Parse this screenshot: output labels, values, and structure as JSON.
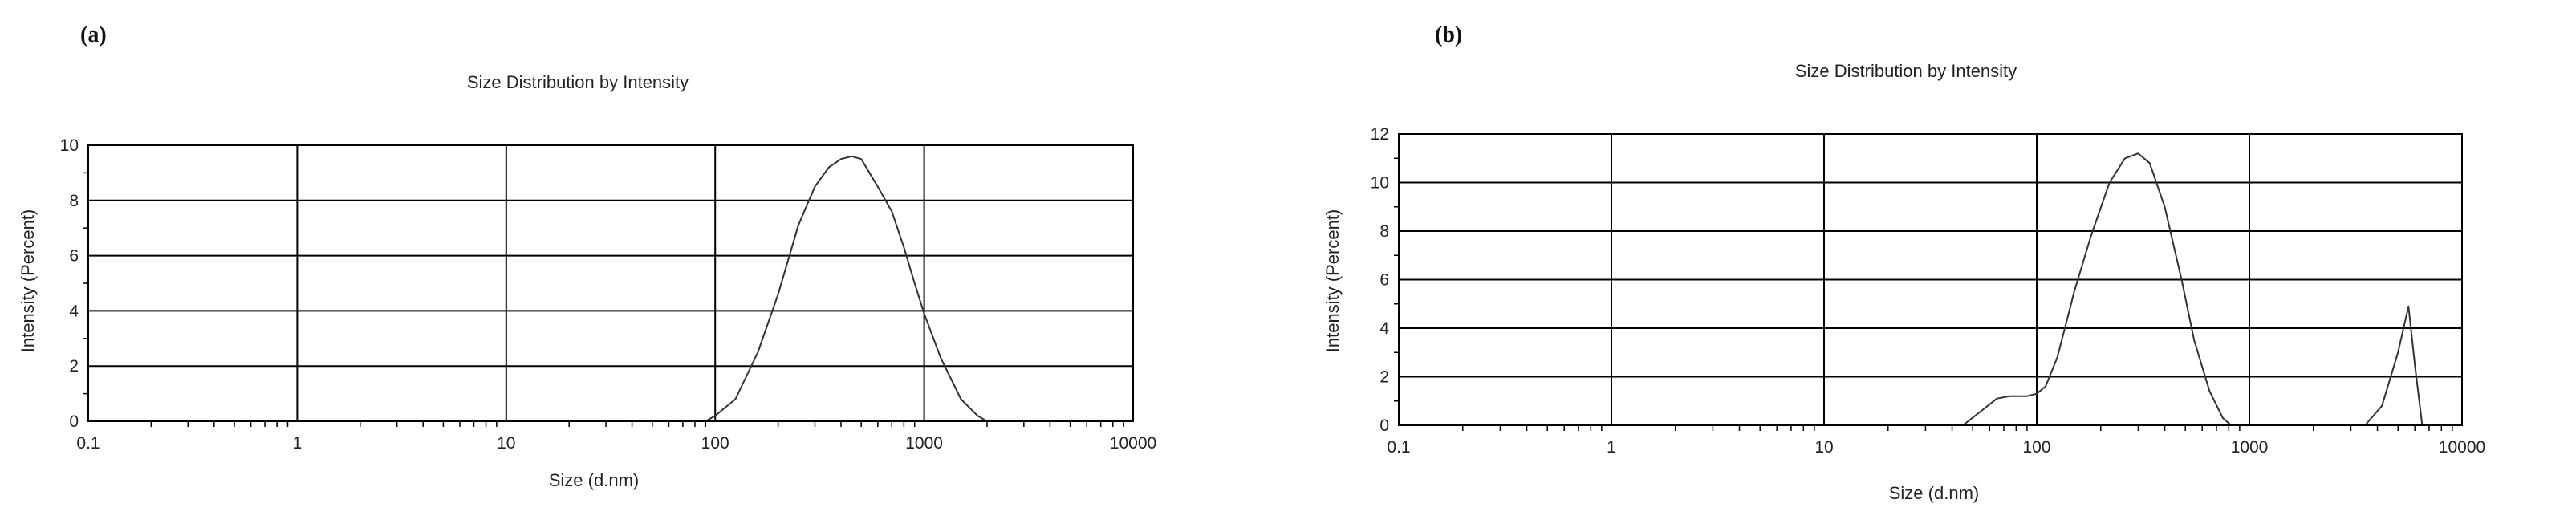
{
  "chart_data": [
    {
      "panel_label": "(a)",
      "type": "line",
      "title": "Size Distribution by Intensity",
      "xlabel": "Size (d.nm)",
      "ylabel": "Intensity (Percent)",
      "xscale": "log",
      "xlim": [
        0.1,
        10000
      ],
      "ylim": [
        0,
        10
      ],
      "xticks": [
        "0.1",
        "1",
        "10",
        "100",
        "1000",
        "10000"
      ],
      "yticks": [
        "0",
        "2",
        "4",
        "6",
        "8",
        "10"
      ],
      "ytick_values": [
        0,
        2,
        4,
        6,
        8,
        10
      ],
      "grid": true,
      "series": [
        {
          "x": [
            0.1,
            90,
            100,
            125,
            160,
            200,
            250,
            300,
            350,
            400,
            450,
            500,
            600,
            700,
            800,
            900,
            1000,
            1200,
            1500,
            1800,
            2000,
            10000
          ],
          "y": [
            0,
            0,
            0.2,
            0.8,
            2.5,
            4.6,
            7.1,
            8.5,
            9.2,
            9.5,
            9.6,
            9.5,
            8.5,
            7.6,
            6.3,
            5.0,
            3.9,
            2.3,
            0.8,
            0.2,
            0,
            0
          ]
        }
      ]
    },
    {
      "panel_label": "(b)",
      "type": "line",
      "title": "Size Distribution by Intensity",
      "xlabel": "Size (d.nm)",
      "ylabel": "Intensity (Percent)",
      "xscale": "log",
      "xlim": [
        0.1,
        10000
      ],
      "ylim": [
        0,
        12
      ],
      "xticks": [
        "0.1",
        "1",
        "10",
        "100",
        "1000",
        "10000"
      ],
      "yticks": [
        "0",
        "2",
        "4",
        "6",
        "8",
        "10",
        "12"
      ],
      "ytick_values": [
        0,
        2,
        4,
        6,
        8,
        10,
        12
      ],
      "grid": true,
      "series": [
        {
          "x": [
            0.1,
            45,
            55,
            65,
            75,
            90,
            100,
            110,
            125,
            150,
            180,
            220,
            260,
            300,
            340,
            400,
            480,
            550,
            650,
            750,
            820,
            3500,
            4200,
            5000,
            5600,
            6000,
            6500,
            10000
          ],
          "y": [
            0,
            0,
            0.6,
            1.1,
            1.2,
            1.2,
            1.3,
            1.6,
            2.8,
            5.5,
            7.8,
            10.0,
            11.0,
            11.2,
            10.8,
            9.0,
            6.0,
            3.5,
            1.4,
            0.3,
            0,
            0,
            0.8,
            3.0,
            4.9,
            2.5,
            0,
            0
          ]
        }
      ]
    }
  ]
}
